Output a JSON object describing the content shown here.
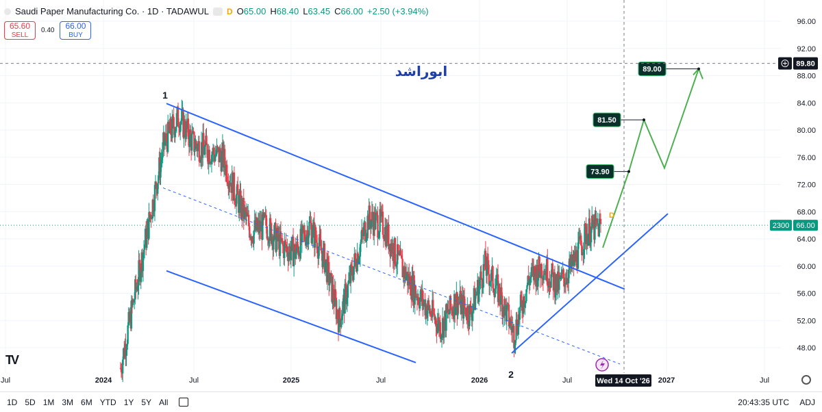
{
  "header": {
    "symbol": "Saudi Paper Manufacturing Co. · 1D · TADAWUL",
    "badge": "D",
    "ohlc": [
      {
        "k": "O",
        "v": "65.00"
      },
      {
        "k": "H",
        "v": "68.40"
      },
      {
        "k": "L",
        "v": "63.45"
      },
      {
        "k": "C",
        "v": "66.00"
      },
      {
        "k": "",
        "v": "+2.50 (+3.94%)"
      }
    ]
  },
  "trade": {
    "sell_price": "65.60",
    "sell_label": "SELL",
    "spread": "0.40",
    "buy_price": "66.00",
    "buy_label": "BUY"
  },
  "annotation_text": "ابوراشد",
  "wave_labels": {
    "w1": "1",
    "w2": "2"
  },
  "target_labels": [
    "89.00",
    "81.50",
    "73.90"
  ],
  "price_axis": {
    "ticks": [
      "96.00",
      "92.00",
      "88.00",
      "84.00",
      "80.00",
      "76.00",
      "72.00",
      "68.00",
      "64.00",
      "60.00",
      "56.00",
      "52.00",
      "48.00"
    ],
    "crosshair_price": "89.80",
    "last_volume": "2300",
    "last_price": "66.00",
    "colors": {
      "up": "#089981",
      "down": "#f23645",
      "channel": "#2962ff",
      "projection": "#4caf50"
    }
  },
  "time_axis": {
    "labels": [
      "Jul",
      "2024",
      "Jul",
      "2025",
      "Jul",
      "2026",
      "Jul",
      "2027",
      "Jul"
    ],
    "crosshair_date": "Wed 14 Oct '26"
  },
  "bottombar": {
    "ranges": [
      "1D",
      "5D",
      "1M",
      "3M",
      "6M",
      "YTD",
      "1Y",
      "5Y",
      "All"
    ],
    "clock": "20:43:35 UTC",
    "adj": "ADJ"
  },
  "chart_data": {
    "type": "candlestick",
    "title": "Saudi Paper Manufacturing Co. · 1D · TADAWUL",
    "ylim": [
      46,
      97
    ],
    "last_close": 66.0,
    "approx_close_path": [
      {
        "x": "2023-12",
        "y": 45
      },
      {
        "x": "2024-01",
        "y": 56
      },
      {
        "x": "2024-02",
        "y": 67
      },
      {
        "x": "2024-03",
        "y": 78
      },
      {
        "x": "2024-04",
        "y": 82
      },
      {
        "x": "2024-05",
        "y": 78
      },
      {
        "x": "2024-06",
        "y": 77
      },
      {
        "x": "2024-07",
        "y": 76
      },
      {
        "x": "2024-08",
        "y": 70
      },
      {
        "x": "2024-09",
        "y": 65
      },
      {
        "x": "2024-10",
        "y": 66
      },
      {
        "x": "2024-11",
        "y": 63
      },
      {
        "x": "2024-12",
        "y": 62
      },
      {
        "x": "2025-01",
        "y": 66
      },
      {
        "x": "2025-02",
        "y": 61
      },
      {
        "x": "2025-03",
        "y": 52
      },
      {
        "x": "2025-04",
        "y": 60
      },
      {
        "x": "2025-05",
        "y": 67
      },
      {
        "x": "2025-06",
        "y": 66
      },
      {
        "x": "2025-07",
        "y": 61
      },
      {
        "x": "2025-08",
        "y": 57
      },
      {
        "x": "2025-09",
        "y": 54
      },
      {
        "x": "2025-10",
        "y": 51
      },
      {
        "x": "2025-11",
        "y": 55
      },
      {
        "x": "2025-12",
        "y": 53
      },
      {
        "x": "2026-01",
        "y": 60
      },
      {
        "x": "2026-02",
        "y": 56
      },
      {
        "x": "2026-03",
        "y": 50
      },
      {
        "x": "2026-04",
        "y": 58
      },
      {
        "x": "2026-05",
        "y": 60
      },
      {
        "x": "2026-06",
        "y": 57
      },
      {
        "x": "2026-07",
        "y": 60
      },
      {
        "x": "2026-08",
        "y": 65
      },
      {
        "x": "2026-09",
        "y": 66
      }
    ],
    "projection_targets": [
      73.9,
      81.5,
      89.0
    ]
  }
}
